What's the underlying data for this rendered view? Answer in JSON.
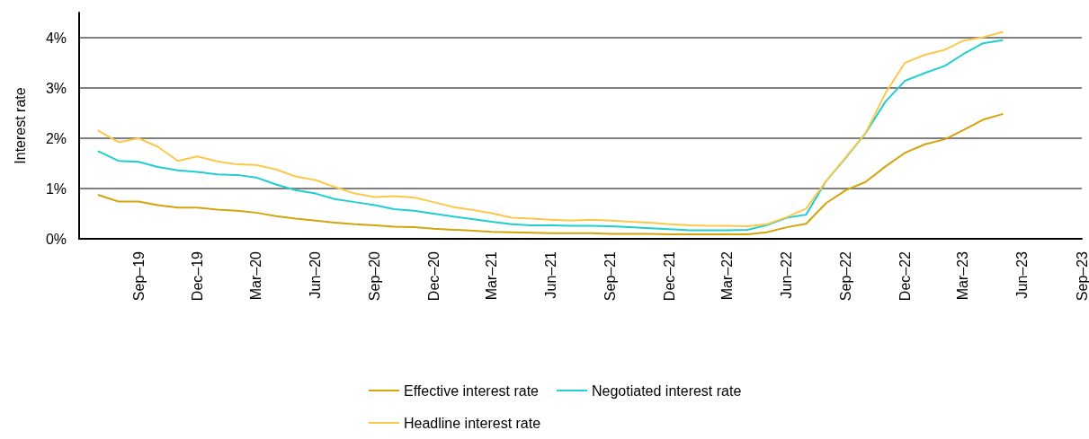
{
  "chart_data": {
    "type": "line",
    "ylabel": "Interest rate",
    "x": [
      "2019-07",
      "2019-08",
      "2019-09",
      "2019-10",
      "2019-11",
      "2019-12",
      "2020-01",
      "2020-02",
      "2020-03",
      "2020-04",
      "2020-05",
      "2020-06",
      "2020-07",
      "2020-08",
      "2020-09",
      "2020-10",
      "2020-11",
      "2020-12",
      "2021-01",
      "2021-02",
      "2021-03",
      "2021-04",
      "2021-05",
      "2021-06",
      "2021-07",
      "2021-08",
      "2021-09",
      "2021-10",
      "2021-11",
      "2021-12",
      "2022-01",
      "2022-02",
      "2022-03",
      "2022-04",
      "2022-05",
      "2022-06",
      "2022-07",
      "2022-08",
      "2022-09",
      "2022-10",
      "2022-11",
      "2022-12",
      "2023-01",
      "2023-02",
      "2023-03",
      "2023-04",
      "2023-05"
    ],
    "series": [
      {
        "name": "Effective interest rate",
        "color": "#d4a40a",
        "values": [
          0.87,
          0.74,
          0.74,
          0.67,
          0.62,
          0.62,
          0.58,
          0.56,
          0.52,
          0.45,
          0.4,
          0.36,
          0.32,
          0.29,
          0.27,
          0.24,
          0.23,
          0.2,
          0.18,
          0.16,
          0.14,
          0.13,
          0.12,
          0.11,
          0.11,
          0.11,
          0.1,
          0.1,
          0.1,
          0.09,
          0.09,
          0.09,
          0.09,
          0.09,
          0.13,
          0.23,
          0.3,
          0.71,
          0.97,
          1.13,
          1.44,
          1.71,
          1.88,
          1.98,
          2.16,
          2.37,
          2.48
        ]
      },
      {
        "name": "Negotiated interest rate",
        "color": "#1fcfcf",
        "values": [
          1.74,
          1.55,
          1.53,
          1.43,
          1.36,
          1.33,
          1.28,
          1.27,
          1.22,
          1.08,
          0.97,
          0.9,
          0.79,
          0.73,
          0.67,
          0.59,
          0.56,
          0.5,
          0.44,
          0.39,
          0.34,
          0.29,
          0.27,
          0.27,
          0.26,
          0.26,
          0.25,
          0.23,
          0.21,
          0.19,
          0.17,
          0.17,
          0.17,
          0.18,
          0.27,
          0.42,
          0.48,
          1.15,
          1.62,
          2.1,
          2.73,
          3.14,
          3.3,
          3.44,
          3.67,
          3.89,
          3.95
        ]
      },
      {
        "name": "Headline interest rate",
        "color": "#fdc84a",
        "values": [
          2.15,
          1.92,
          2.0,
          1.83,
          1.55,
          1.64,
          1.54,
          1.48,
          1.47,
          1.38,
          1.24,
          1.17,
          1.03,
          0.9,
          0.83,
          0.85,
          0.82,
          0.73,
          0.63,
          0.57,
          0.51,
          0.42,
          0.4,
          0.38,
          0.36,
          0.38,
          0.36,
          0.34,
          0.32,
          0.29,
          0.27,
          0.26,
          0.26,
          0.25,
          0.29,
          0.43,
          0.6,
          1.15,
          1.63,
          2.1,
          2.9,
          3.5,
          3.66,
          3.76,
          3.94,
          4.01,
          4.11
        ]
      }
    ],
    "xlim": [
      "2019-06",
      "2023-09"
    ],
    "xticks": [
      {
        "value": "2019-09",
        "label": "Sep–19"
      },
      {
        "value": "2019-12",
        "label": "Dec–19"
      },
      {
        "value": "2020-03",
        "label": "Mar–20"
      },
      {
        "value": "2020-06",
        "label": "Jun–20"
      },
      {
        "value": "2020-09",
        "label": "Sep–20"
      },
      {
        "value": "2020-12",
        "label": "Dec–20"
      },
      {
        "value": "2021-03",
        "label": "Mar–21"
      },
      {
        "value": "2021-06",
        "label": "Jun–21"
      },
      {
        "value": "2021-09",
        "label": "Sep–21"
      },
      {
        "value": "2021-12",
        "label": "Dec–21"
      },
      {
        "value": "2022-03",
        "label": "Mar–22"
      },
      {
        "value": "2022-06",
        "label": "Jun–22"
      },
      {
        "value": "2022-09",
        "label": "Sep–22"
      },
      {
        "value": "2022-12",
        "label": "Dec–22"
      },
      {
        "value": "2023-03",
        "label": "Mar–23"
      },
      {
        "value": "2023-06",
        "label": "Jun–23"
      },
      {
        "value": "2023-09",
        "label": "Sep–23"
      }
    ],
    "ylim": [
      0,
      4.5
    ],
    "yticks": [
      {
        "value": 0,
        "label": "0%"
      },
      {
        "value": 1,
        "label": "1%"
      },
      {
        "value": 2,
        "label": "2%"
      },
      {
        "value": 3,
        "label": "3%"
      },
      {
        "value": 4,
        "label": "4%"
      }
    ],
    "grid": "y",
    "legend": "bottom",
    "marker": "none",
    "line_style": "solid"
  }
}
